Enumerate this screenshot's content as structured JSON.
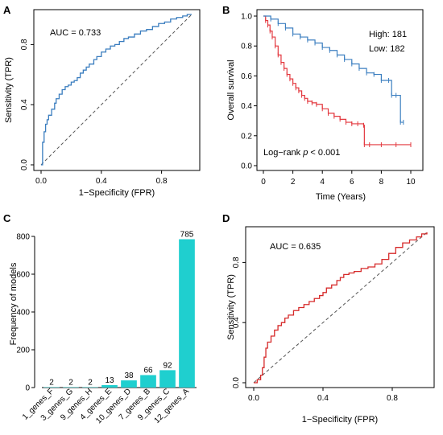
{
  "panels": [
    {
      "id": "A",
      "label": "A"
    },
    {
      "id": "B",
      "label": "B"
    },
    {
      "id": "C",
      "label": "C"
    },
    {
      "id": "D",
      "label": "D"
    }
  ],
  "colors": {
    "roc_a": "#3a7dbf",
    "roc_d": "#d62a2a",
    "km_high": "#e3383f",
    "km_low": "#3c7fc0",
    "bar": "#1fcfcf",
    "diag": "#555555",
    "axis": "#000000"
  },
  "chart_data": [
    {
      "panel": "A",
      "type": "line",
      "title": "",
      "annotation": "AUC = 0.733",
      "xlabel": "1−Specificity (FPR)",
      "ylabel": "Sensitivity (TPR)",
      "xlim": [
        0,
        1
      ],
      "ylim": [
        0,
        1
      ],
      "xticks": [
        "0.0",
        "0.4",
        "0.8"
      ],
      "yticks": [
        "0.0",
        "0.4",
        "0.8"
      ],
      "reference_line": "diagonal",
      "x": [
        0,
        0.01,
        0.02,
        0.03,
        0.04,
        0.05,
        0.07,
        0.09,
        0.1,
        0.12,
        0.14,
        0.16,
        0.18,
        0.2,
        0.22,
        0.24,
        0.26,
        0.28,
        0.3,
        0.32,
        0.35,
        0.37,
        0.4,
        0.43,
        0.46,
        0.49,
        0.52,
        0.55,
        0.58,
        0.62,
        0.66,
        0.7,
        0.74,
        0.78,
        0.82,
        0.86,
        0.9,
        0.94,
        0.97,
        1
      ],
      "y": [
        0,
        0.15,
        0.22,
        0.27,
        0.3,
        0.33,
        0.37,
        0.41,
        0.44,
        0.47,
        0.5,
        0.52,
        0.53,
        0.55,
        0.56,
        0.58,
        0.61,
        0.63,
        0.65,
        0.67,
        0.7,
        0.72,
        0.75,
        0.77,
        0.79,
        0.8,
        0.82,
        0.84,
        0.85,
        0.87,
        0.89,
        0.9,
        0.92,
        0.94,
        0.95,
        0.97,
        0.98,
        0.99,
        1,
        1
      ]
    },
    {
      "panel": "B",
      "type": "line",
      "title": "",
      "xlabel": "Time (Years)",
      "ylabel": "Overall survival",
      "xlim": [
        0,
        10
      ],
      "ylim": [
        0,
        1
      ],
      "xticks": [
        "0",
        "2",
        "4",
        "6",
        "8",
        "10"
      ],
      "yticks": [
        "0.0",
        "0.2",
        "0.4",
        "0.6",
        "0.8",
        "1.0"
      ],
      "annotation_prefix": "Log−rank ",
      "annotation_p": "p",
      "annotation_suffix": " < 0.001",
      "legend": [
        {
          "label": "High: 181",
          "series": "high"
        },
        {
          "label": "Low: 182",
          "series": "low"
        }
      ],
      "series": [
        {
          "id": "high",
          "x": [
            0,
            0.15,
            0.3,
            0.45,
            0.6,
            0.8,
            1.0,
            1.2,
            1.4,
            1.6,
            1.8,
            2.0,
            2.2,
            2.4,
            2.6,
            2.8,
            3.0,
            3.3,
            3.6,
            4.0,
            4.4,
            4.8,
            5.2,
            5.6,
            6.0,
            6.4,
            6.8,
            6.85,
            7.2,
            8.0,
            9.0,
            10.0
          ],
          "y": [
            1.0,
            0.97,
            0.94,
            0.9,
            0.86,
            0.8,
            0.74,
            0.69,
            0.65,
            0.61,
            0.58,
            0.55,
            0.52,
            0.5,
            0.47,
            0.45,
            0.43,
            0.42,
            0.41,
            0.38,
            0.35,
            0.33,
            0.31,
            0.29,
            0.28,
            0.28,
            0.27,
            0.14,
            0.14,
            0.14,
            0.14,
            0.14
          ]
        },
        {
          "id": "low",
          "x": [
            0,
            0.5,
            1.0,
            1.5,
            2.0,
            2.5,
            3.0,
            3.5,
            4.0,
            4.5,
            5.0,
            5.5,
            6.0,
            6.5,
            7.0,
            7.5,
            8.0,
            8.5,
            8.7,
            9.0,
            9.3,
            9.5
          ],
          "y": [
            1.0,
            0.98,
            0.95,
            0.92,
            0.88,
            0.86,
            0.84,
            0.82,
            0.79,
            0.77,
            0.74,
            0.71,
            0.68,
            0.65,
            0.62,
            0.61,
            0.57,
            0.57,
            0.47,
            0.47,
            0.29,
            0.29
          ]
        }
      ]
    },
    {
      "panel": "C",
      "type": "bar",
      "title": "",
      "xlabel": "",
      "ylabel": "Frequency of models",
      "ylim": [
        0,
        820
      ],
      "yticks": [
        "0",
        "200",
        "400",
        "600",
        "800"
      ],
      "categories": [
        "1_genes_F",
        "3_genes_G",
        "9_genes_H",
        "4_genes_E",
        "10_genes_D",
        "7_genes_B",
        "9_genes_C",
        "12_genes_A"
      ],
      "values": [
        2,
        2,
        2,
        13,
        38,
        66,
        92,
        785
      ],
      "value_labels": [
        "2",
        "2",
        "2",
        "13",
        "38",
        "66",
        "92",
        "785"
      ]
    },
    {
      "panel": "D",
      "type": "line",
      "title": "",
      "annotation": "AUC = 0.635",
      "xlabel": "1−Specificity (FPR)",
      "ylabel": "Sensitivity (TPR)",
      "xlim": [
        0,
        1
      ],
      "ylim": [
        0,
        1
      ],
      "xticks": [
        "0.0",
        "0.4",
        "0.8"
      ],
      "yticks": [
        "0.0",
        "0.4",
        "0.8"
      ],
      "reference_line": "diagonal",
      "x": [
        0,
        0.02,
        0.04,
        0.05,
        0.06,
        0.07,
        0.08,
        0.1,
        0.12,
        0.14,
        0.16,
        0.18,
        0.2,
        0.23,
        0.26,
        0.29,
        0.32,
        0.35,
        0.38,
        0.4,
        0.42,
        0.45,
        0.48,
        0.5,
        0.52,
        0.55,
        0.58,
        0.62,
        0.66,
        0.7,
        0.74,
        0.78,
        0.82,
        0.86,
        0.9,
        0.94,
        0.97,
        1
      ],
      "y": [
        0,
        0.02,
        0.05,
        0.1,
        0.17,
        0.23,
        0.27,
        0.31,
        0.35,
        0.38,
        0.4,
        0.43,
        0.45,
        0.48,
        0.5,
        0.52,
        0.54,
        0.56,
        0.58,
        0.6,
        0.63,
        0.65,
        0.68,
        0.7,
        0.72,
        0.73,
        0.74,
        0.76,
        0.77,
        0.79,
        0.82,
        0.86,
        0.9,
        0.93,
        0.95,
        0.97,
        0.99,
        1
      ]
    }
  ]
}
